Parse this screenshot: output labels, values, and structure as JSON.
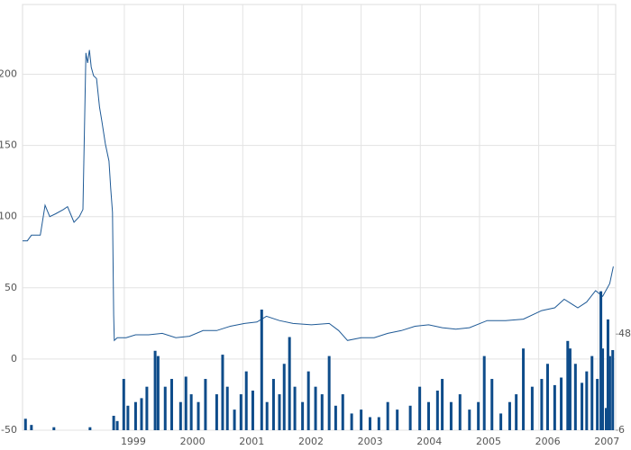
{
  "chart_data": {
    "type": "line",
    "xlim": [
      1997.28,
      2007.3
    ],
    "xticks": [
      1999,
      2000,
      2001,
      2002,
      2003,
      2004,
      2005,
      2006,
      2007
    ],
    "ylim": [
      -50,
      249
    ],
    "yticks": [
      -50,
      0,
      50,
      100,
      150,
      200
    ],
    "y2lim": [
      6,
      192
    ],
    "y2ticks": [
      6,
      48
    ],
    "grid": true,
    "series": [
      {
        "type": "line",
        "color": "#1f5a96",
        "x": [
          1997.28,
          1997.36,
          1997.43,
          1997.58,
          1997.66,
          1997.74,
          1997.84,
          1997.97,
          1998.04,
          1998.09,
          1998.15,
          1998.24,
          1998.3,
          1998.35,
          1998.38,
          1998.41,
          1998.44,
          1998.48,
          1998.53,
          1998.58,
          1998.62,
          1998.68,
          1998.74,
          1998.77,
          1998.8,
          1998.82,
          1998.83,
          1998.88,
          1999.03,
          1999.19,
          1999.41,
          1999.64,
          1999.87,
          2000.1,
          2000.33,
          2000.56,
          2000.79,
          2001.03,
          2001.24,
          2001.4,
          2001.62,
          2001.85,
          2002.16,
          2002.46,
          2002.62,
          2002.77,
          2003.0,
          2003.22,
          2003.45,
          2003.68,
          2003.91,
          2004.14,
          2004.37,
          2004.6,
          2004.83,
          2005.13,
          2005.44,
          2005.74,
          2006.05,
          2006.27,
          2006.43,
          2006.66,
          2006.81,
          2006.96,
          2007.08,
          2007.2,
          2007.26
        ],
        "values": [
          83,
          83,
          87,
          87,
          108,
          100,
          102,
          105,
          107,
          102,
          96,
          100,
          105,
          215,
          208,
          217,
          205,
          199,
          197,
          177,
          167,
          151,
          139,
          120,
          103,
          31,
          13,
          15,
          15,
          17,
          17,
          18,
          15,
          16,
          20,
          20,
          23,
          25,
          26,
          30,
          27,
          25,
          24,
          25,
          20,
          13,
          15,
          15,
          18,
          20,
          23,
          24,
          22,
          21,
          22,
          27,
          27,
          28,
          34,
          36,
          42,
          36,
          40,
          48,
          44,
          53,
          65
        ]
      },
      {
        "type": "bar",
        "axis": "y2",
        "color": "#0e4c8a",
        "x": [
          1997.33,
          1997.43,
          1997.81,
          1998.42,
          1998.82,
          1998.88,
          1998.99,
          1999.06,
          1999.19,
          1999.29,
          1999.38,
          1999.52,
          1999.57,
          1999.69,
          1999.8,
          1999.95,
          2000.04,
          2000.13,
          2000.25,
          2000.37,
          2000.56,
          2000.66,
          2000.74,
          2000.86,
          2000.97,
          2001.06,
          2001.17,
          2001.32,
          2001.41,
          2001.52,
          2001.62,
          2001.7,
          2001.79,
          2001.88,
          2002.01,
          2002.11,
          2002.23,
          2002.34,
          2002.46,
          2002.57,
          2002.69,
          2002.84,
          2003.0,
          2003.15,
          2003.3,
          2003.45,
          2003.61,
          2003.83,
          2003.99,
          2004.14,
          2004.29,
          2004.37,
          2004.52,
          2004.67,
          2004.83,
          2004.98,
          2005.08,
          2005.21,
          2005.36,
          2005.51,
          2005.62,
          2005.74,
          2005.89,
          2006.05,
          2006.15,
          2006.27,
          2006.38,
          2006.49,
          2006.53,
          2006.62,
          2006.73,
          2006.81,
          2006.9,
          2006.99,
          2007.05,
          2007.08,
          2007.14,
          2007.17,
          2007.2,
          2007.25
        ],
        "values": [
          11.0,
          8.3,
          7.3,
          7.3,
          12.3,
          10.0,
          28.4,
          16.7,
          18.3,
          20.0,
          25.0,
          40.7,
          38.4,
          25.0,
          28.4,
          18.3,
          29.4,
          21.7,
          18.3,
          28.4,
          21.7,
          39.0,
          25.0,
          15.0,
          21.7,
          31.7,
          23.3,
          58.7,
          18.3,
          28.4,
          21.7,
          35.0,
          46.7,
          25.0,
          18.3,
          31.7,
          25.0,
          21.7,
          38.4,
          16.7,
          21.7,
          13.3,
          15.0,
          11.7,
          11.7,
          18.3,
          15.0,
          16.7,
          25.0,
          18.3,
          23.3,
          28.4,
          18.3,
          21.7,
          15.0,
          18.3,
          38.4,
          28.4,
          13.3,
          18.3,
          21.7,
          41.7,
          25.0,
          28.4,
          35.0,
          25.7,
          29.0,
          45.0,
          41.7,
          35.0,
          26.7,
          31.7,
          38.4,
          28.4,
          66.7,
          41.7,
          15.7,
          54.4,
          38.4,
          41.0
        ]
      }
    ]
  }
}
